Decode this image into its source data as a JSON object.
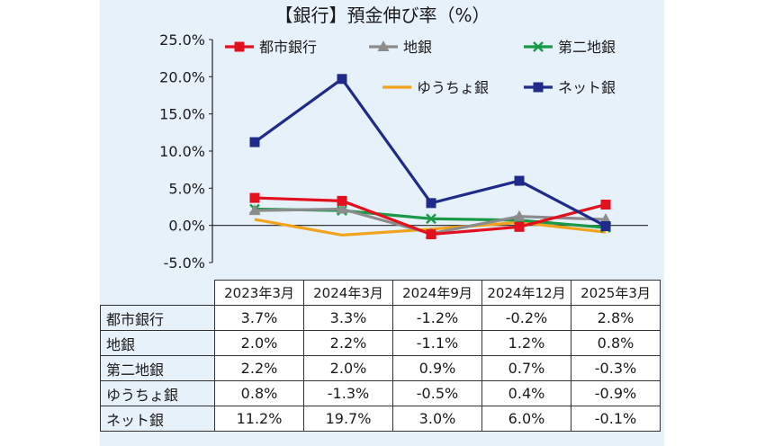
{
  "chart_data": {
    "type": "line",
    "title": "【銀行】預金伸び率（%）",
    "categories": [
      "2023年3月",
      "2024年3月",
      "2024年9月",
      "2024年12月",
      "2025年3月"
    ],
    "ylim": [
      -5,
      25
    ],
    "yticks": [
      "25.0%",
      "20.0%",
      "15.0%",
      "10.0%",
      "5.0%",
      "0.0%",
      "-5.0%"
    ],
    "ytick_values": [
      25,
      20,
      15,
      10,
      5,
      0,
      -5
    ],
    "legend_position": "top",
    "grid": false,
    "series": [
      {
        "name": "都市銀行",
        "values": [
          3.7,
          3.3,
          -1.2,
          -0.2,
          2.8
        ],
        "labels": [
          "3.7%",
          "3.3%",
          "-1.2%",
          "-0.2%",
          "2.8%"
        ],
        "color": "#e3101e",
        "marker": "square"
      },
      {
        "name": "地銀",
        "values": [
          2.0,
          2.2,
          -1.1,
          1.2,
          0.8
        ],
        "labels": [
          "2.0%",
          "2.2%",
          "-1.1%",
          "1.2%",
          "0.8%"
        ],
        "color": "#8c8c8c",
        "marker": "triangle"
      },
      {
        "name": "第二地銀",
        "values": [
          2.2,
          2.0,
          0.9,
          0.7,
          -0.3
        ],
        "labels": [
          "2.2%",
          "2.0%",
          "0.9%",
          "0.7%",
          "-0.3%"
        ],
        "color": "#1a9a48",
        "marker": "x"
      },
      {
        "name": "ゆうちょ銀",
        "values": [
          0.8,
          -1.3,
          -0.5,
          0.4,
          -0.9
        ],
        "labels": [
          "0.8%",
          "-1.3%",
          "-0.5%",
          "0.4%",
          "-0.9%"
        ],
        "color": "#f2a21b",
        "marker": "none"
      },
      {
        "name": "ネット銀",
        "values": [
          11.2,
          19.7,
          3.0,
          6.0,
          -0.1
        ],
        "labels": [
          "11.2%",
          "19.7%",
          "3.0%",
          "6.0%",
          "-0.1%"
        ],
        "color": "#1f2a8a",
        "marker": "square"
      }
    ]
  }
}
